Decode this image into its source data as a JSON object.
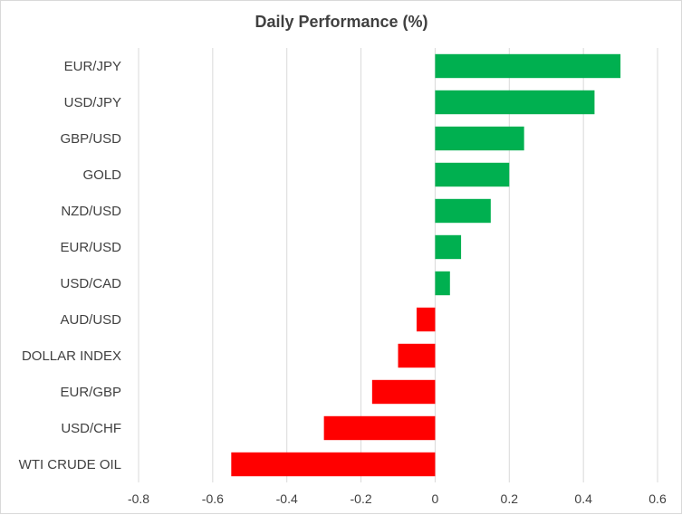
{
  "chart_data": {
    "type": "bar",
    "orientation": "horizontal",
    "title": "Daily Performance (%)",
    "xlabel": "",
    "ylabel": "",
    "categories": [
      "EUR/JPY",
      "USD/JPY",
      "GBP/USD",
      "GOLD",
      "NZD/USD",
      "EUR/USD",
      "USD/CAD",
      "AUD/USD",
      "DOLLAR INDEX",
      "EUR/GBP",
      "USD/CHF",
      "WTI CRUDE OIL"
    ],
    "values": [
      0.5,
      0.43,
      0.24,
      0.2,
      0.15,
      0.07,
      0.04,
      -0.05,
      -0.1,
      -0.17,
      -0.3,
      -0.55
    ],
    "xlim": [
      -0.8,
      0.6
    ],
    "ticks": [
      -0.8,
      -0.6,
      -0.4,
      -0.2,
      0,
      0.2,
      0.4,
      0.6
    ],
    "tick_labels": [
      "-0.8",
      "-0.6",
      "-0.4",
      "-0.2",
      "0",
      "0.2",
      "0.4",
      "0.6"
    ],
    "grid": true,
    "legend": "none",
    "colors": {
      "positive": "#00b050",
      "negative": "#ff0000"
    }
  }
}
